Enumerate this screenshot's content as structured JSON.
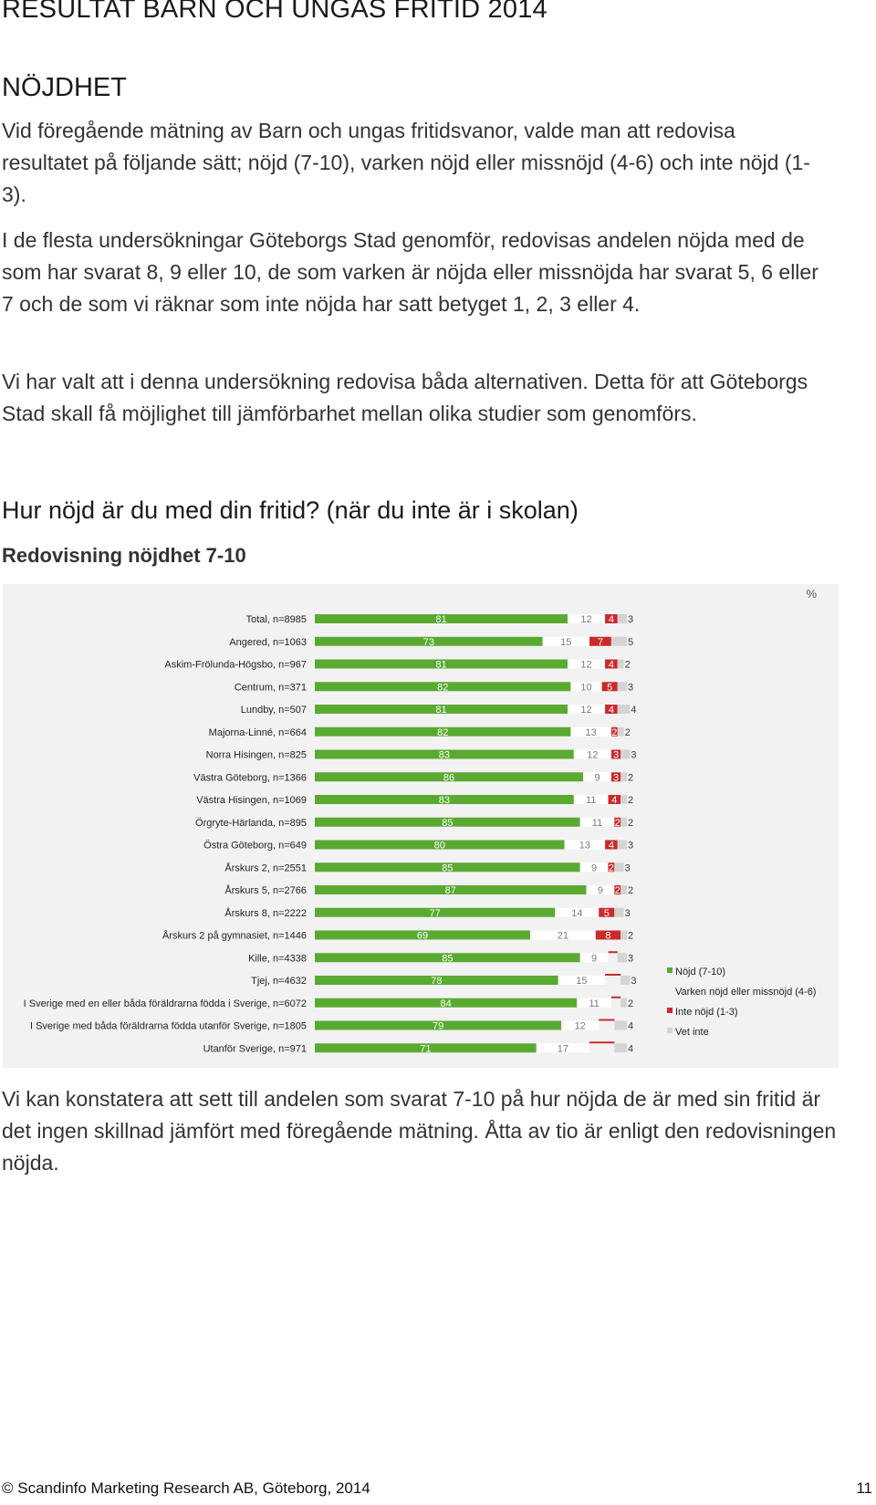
{
  "header": {
    "title": "RESULTAT BARN OCH UNGAS FRITID 2014"
  },
  "section": {
    "heading": "NÖJDHET"
  },
  "paragraphs": [
    "Vid föregående mätning av Barn och ungas fritidsvanor, valde man att redovisa resultatet på följande sätt; nöjd (7-10), varken nöjd eller missnöjd (4-6) och inte nöjd (1-3).",
    "I de flesta undersökningar Göteborgs Stad genomför, redovisas andelen nöjda med de som har svarat 8, 9 eller 10, de som varken är nöjda eller missnöjda har svarat 5, 6 eller 7 och de som vi räknar som inte nöjda har satt betyget 1, 2, 3 eller 4.",
    "Vi har valt att i denna undersökning redovisa båda alternativen. Detta för att Göteborgs Stad skall få möjlighet till jämförbarhet mellan olika studier som genomförs."
  ],
  "question": "Hur nöjd är du med din fritid? (när du inte är i skolan)",
  "subheading": "Redovisning nöjdhet 7-10",
  "chart_data": {
    "type": "bar",
    "stacked": true,
    "orientation": "horizontal",
    "unit": "%",
    "categories": [
      "Total, n=8985",
      "Angered, n=1063",
      "Askim-Frölunda-Högsbo, n=967",
      "Centrum, n=371",
      "Lundby, n=507",
      "Majorna-Linné, n=664",
      "Norra Hisingen, n=825",
      "Västra Göteborg, n=1366",
      "Västra Hisingen, n=1069",
      "Örgryte-Härlanda, n=895",
      "Östra Göteborg, n=649",
      "Årskurs 2, n=2551",
      "Årskurs 5, n=2766",
      "Årskurs 8, n=2222",
      "Årskurs 2 på gymnasiet, n=1446",
      "Kille, n=4338",
      "Tjej, n=4632",
      "I Sverige med en eller båda föräldrarna födda i Sverige, n=6072",
      "I Sverige med båda föräldrarna födda utanför Sverige, n=1805",
      "Utanför Sverige, n=971"
    ],
    "series": [
      {
        "name": "Nöjd (7-10)",
        "color": "#5aaa32",
        "values": [
          81,
          73,
          81,
          82,
          81,
          82,
          83,
          86,
          83,
          85,
          80,
          85,
          87,
          77,
          69,
          85,
          78,
          84,
          79,
          71
        ],
        "labels": [
          "81",
          "73",
          "81",
          "82",
          "81",
          "82",
          "83",
          "86",
          "83",
          "85",
          "80",
          "85",
          "87",
          "77",
          "69",
          "85",
          "78",
          "84",
          "79",
          "71"
        ]
      },
      {
        "name": "Varken nöjd eller missnöjd (4-6)",
        "color": "#ffffff",
        "values": [
          12,
          15,
          12,
          10,
          12,
          13,
          12,
          9,
          11,
          11,
          13,
          9,
          9,
          14,
          21,
          9,
          15,
          11,
          12,
          17
        ],
        "labels": [
          "12",
          "15",
          "12",
          "10",
          "12",
          "13",
          "12",
          "9",
          "11",
          "11",
          "13",
          "9",
          "9",
          "14",
          "21",
          "9",
          "15",
          "11",
          "12",
          "17"
        ]
      },
      {
        "name": "Inte nöjd (1-3)",
        "color": "#cc2a2a",
        "values": [
          4,
          7,
          4,
          5,
          4,
          2,
          3,
          3,
          4,
          2,
          4,
          2,
          2,
          5,
          8,
          3,
          5,
          3,
          5,
          8
        ],
        "labels": [
          "4",
          "7",
          "4",
          "5",
          "4",
          "2",
          "3",
          "3",
          "4",
          "2",
          "4",
          "2",
          "2",
          "5",
          "8",
          "",
          "",
          "",
          "",
          ""
        ]
      },
      {
        "name": "Vet inte",
        "color": "#d4d4d4",
        "values": [
          3,
          5,
          2,
          3,
          4,
          2,
          3,
          2,
          2,
          2,
          3,
          3,
          2,
          3,
          2,
          3,
          3,
          2,
          4,
          4
        ],
        "labels": [
          "3",
          "5",
          "2",
          "3",
          "4",
          "2",
          "3",
          "2",
          "2",
          "2",
          "3",
          "3",
          "2",
          "3",
          "2",
          "3",
          "3",
          "2",
          "4",
          "4"
        ]
      }
    ],
    "legend": {
      "position": "right"
    },
    "grid": false
  },
  "conclusion": "Vi kan konstatera att sett till andelen som svarat 7-10 på hur nöjda de är med sin fritid är det ingen skillnad jämfört med föregående mätning. Åtta av tio är enligt den redovisningen nöjda.",
  "footer": {
    "text": "© Scandinfo Marketing Research AB, Göteborg, 2014",
    "page": "11"
  }
}
